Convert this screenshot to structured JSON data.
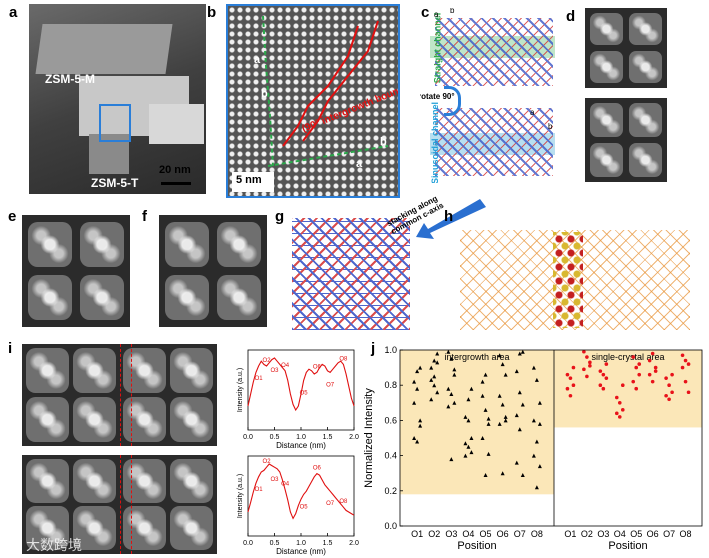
{
  "panels": {
    "a": {
      "label": "a",
      "zsm5m": "ZSM-5-M",
      "zsm5t": "ZSM-5-T",
      "scale": "20 nm"
    },
    "b": {
      "label": "b",
      "scale": "5 nm",
      "boundary": "(90° intergrowth boundary",
      "axis_a": "a",
      "axis_b": "b",
      "axis_a2": "a",
      "axis_b2": "b"
    },
    "c": {
      "label": "c",
      "straight": "Straight channel",
      "sinusoidal": "Sinusoidal channel",
      "rotate": "rotate 90°",
      "axis_a": "a",
      "axis_b": "b",
      "axis_a2": "a",
      "axis_b2": "b"
    },
    "d": {
      "label": "d"
    },
    "e": {
      "label": "e"
    },
    "f": {
      "label": "f"
    },
    "g": {
      "label": "g",
      "stacking": "stacking along common c-axis"
    },
    "h": {
      "label": "h"
    },
    "i": {
      "label": "i"
    },
    "j": {
      "label": "j"
    }
  },
  "chart_data": [
    {
      "type": "line",
      "panel": "i-top",
      "xlabel": "Distance (nm)",
      "ylabel": "Intensity (a.u.)",
      "xlim": [
        0.0,
        2.0
      ],
      "xticks": [
        "0.0",
        "0.5",
        "1.0",
        "1.5",
        "2.0"
      ],
      "annotations": [
        "O1",
        "O2",
        "O3",
        "O4",
        "O5",
        "O6",
        "O7",
        "O8"
      ],
      "x": [
        0.0,
        0.05,
        0.1,
        0.15,
        0.2,
        0.25,
        0.3,
        0.35,
        0.4,
        0.45,
        0.5,
        0.55,
        0.6,
        0.65,
        0.7,
        0.75,
        0.8,
        0.85,
        0.9,
        0.95,
        1.0,
        1.05,
        1.1,
        1.15,
        1.2,
        1.25,
        1.3,
        1.35,
        1.4,
        1.45,
        1.5,
        1.55,
        1.6,
        1.65,
        1.7,
        1.75,
        1.8,
        1.85,
        1.9,
        1.95,
        2.0
      ],
      "y": [
        0.3,
        0.45,
        0.6,
        0.72,
        0.8,
        0.86,
        0.82,
        0.8,
        0.84,
        0.88,
        0.9,
        0.86,
        0.82,
        0.78,
        0.74,
        0.62,
        0.45,
        0.32,
        0.25,
        0.3,
        0.45,
        0.62,
        0.72,
        0.76,
        0.74,
        0.7,
        0.72,
        0.78,
        0.82,
        0.8,
        0.74,
        0.72,
        0.76,
        0.8,
        0.84,
        0.86,
        0.82,
        0.7,
        0.55,
        0.4,
        0.3
      ]
    },
    {
      "type": "line",
      "panel": "i-bottom",
      "xlabel": "Distance (nm)",
      "ylabel": "Intensity (a.u.)",
      "xlim": [
        0.0,
        2.0
      ],
      "xticks": [
        "0.0",
        "0.5",
        "1.0",
        "1.5",
        "2.0"
      ],
      "annotations": [
        "O1",
        "O2",
        "O3",
        "O4",
        "O5",
        "O6",
        "O7",
        "O8"
      ],
      "x": [
        0.0,
        0.05,
        0.1,
        0.15,
        0.2,
        0.25,
        0.3,
        0.35,
        0.4,
        0.45,
        0.5,
        0.55,
        0.6,
        0.65,
        0.7,
        0.75,
        0.8,
        0.85,
        0.9,
        0.95,
        1.0,
        1.05,
        1.1,
        1.15,
        1.2,
        1.25,
        1.3,
        1.35,
        1.4,
        1.45,
        1.5,
        1.55,
        1.6,
        1.65,
        1.7,
        1.75,
        1.8,
        1.85,
        1.9,
        1.95,
        2.0
      ],
      "y": [
        0.3,
        0.42,
        0.55,
        0.66,
        0.74,
        0.8,
        0.82,
        0.86,
        0.9,
        0.88,
        0.86,
        0.84,
        0.8,
        0.7,
        0.58,
        0.45,
        0.3,
        0.22,
        0.28,
        0.38,
        0.46,
        0.52,
        0.56,
        0.62,
        0.68,
        0.74,
        0.78,
        0.76,
        0.7,
        0.64,
        0.6,
        0.56,
        0.52,
        0.48,
        0.44,
        0.4,
        0.36,
        0.32,
        0.3,
        0.28,
        0.26
      ]
    },
    {
      "type": "scatter",
      "panel": "j",
      "ylabel": "Normalized Intensity",
      "xlabel": "Position",
      "ylim": [
        0.0,
        1.0
      ],
      "yticks": [
        "0.0",
        "0.2",
        "0.4",
        "0.6",
        "0.8",
        "1.0"
      ],
      "categories": [
        "O1",
        "O2",
        "O3",
        "O4",
        "O5",
        "O6",
        "O7",
        "O8"
      ],
      "regions": [
        {
          "name": "intergrowth area",
          "band": [
            0.18,
            1.0
          ],
          "band_color": "#fbe7b8",
          "marker_color": "#000000"
        },
        {
          "name": "single-crystal area",
          "band": [
            0.56,
            1.0
          ],
          "band_color": "#fbe7b8",
          "marker_color": "#e8121a"
        }
      ],
      "series": [
        {
          "values": [
            [
              0.5,
              0.48,
              0.6,
              0.82,
              0.88,
              0.9,
              0.7,
              0.78,
              0.57
            ],
            [
              0.9,
              0.94,
              0.98,
              0.83,
              0.85,
              0.76,
              0.72,
              0.8,
              0.93
            ],
            [
              0.99,
              0.95,
              0.89,
              0.78,
              0.75,
              0.7,
              0.68,
              0.38,
              0.86
            ],
            [
              0.62,
              0.6,
              0.5,
              0.47,
              0.45,
              0.42,
              0.4,
              0.72,
              0.78
            ],
            [
              0.74,
              0.66,
              0.58,
              0.5,
              0.29,
              0.41,
              0.82,
              0.86,
              0.61
            ],
            [
              0.97,
              0.92,
              0.86,
              0.74,
              0.69,
              0.6,
              0.58,
              0.3,
              0.62
            ],
            [
              0.88,
              0.76,
              0.69,
              0.63,
              0.55,
              0.29,
              0.36,
              0.98,
              0.99
            ],
            [
              0.9,
              0.83,
              0.7,
              0.6,
              0.48,
              0.34,
              0.4,
              0.22,
              0.58
            ]
          ]
        },
        {
          "values": [
            [
              0.86,
              0.84,
              0.8,
              0.78,
              0.74,
              0.9
            ],
            [
              0.99,
              0.96,
              0.93,
              0.89,
              0.85,
              0.91
            ],
            [
              0.88,
              0.86,
              0.92,
              0.8,
              0.78,
              0.84
            ],
            [
              0.73,
              0.7,
              0.66,
              0.64,
              0.62,
              0.8
            ],
            [
              0.96,
              0.9,
              0.86,
              0.82,
              0.78,
              0.92
            ],
            [
              0.94,
              0.98,
              0.88,
              0.86,
              0.82,
              0.9
            ],
            [
              0.84,
              0.8,
              0.76,
              0.74,
              0.72,
              0.86
            ],
            [
              0.97,
              0.94,
              0.92,
              0.9,
              0.82,
              0.76
            ]
          ]
        }
      ]
    }
  ],
  "watermark": "大数跨境"
}
